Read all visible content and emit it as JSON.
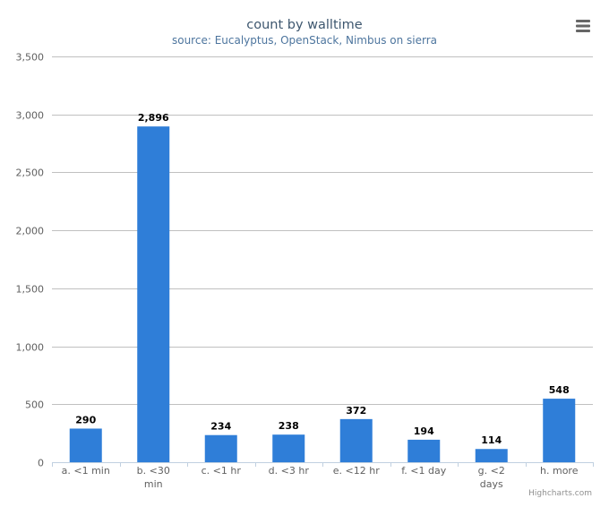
{
  "chart_data": {
    "type": "bar",
    "title": "count by walltime",
    "subtitle": "source: Eucalyptus, OpenStack, Nimbus on sierra",
    "categories": [
      [
        "a. <1 min"
      ],
      [
        "b. <30",
        "min"
      ],
      [
        "c. <1 hr"
      ],
      [
        "d. <3 hr"
      ],
      [
        "e. <12 hr"
      ],
      [
        "f. <1 day"
      ],
      [
        "g. <2",
        "days"
      ],
      [
        "h. more"
      ]
    ],
    "values": [
      290,
      2896,
      234,
      238,
      372,
      194,
      114,
      548
    ],
    "value_labels": [
      "290",
      "2,896",
      "234",
      "238",
      "372",
      "194",
      "114",
      "548"
    ],
    "ylim": [
      0,
      3500
    ],
    "yticks": [
      0,
      500,
      1000,
      1500,
      2000,
      2500,
      3000,
      3500
    ],
    "ytick_labels": [
      "0",
      "500",
      "1,000",
      "1,500",
      "2,000",
      "2,500",
      "3,000",
      "3,500"
    ],
    "grid": true,
    "bar_color": "#2f7ed8",
    "credits": "Highcharts.com",
    "menu_icon": "hamburger-menu-icon"
  }
}
